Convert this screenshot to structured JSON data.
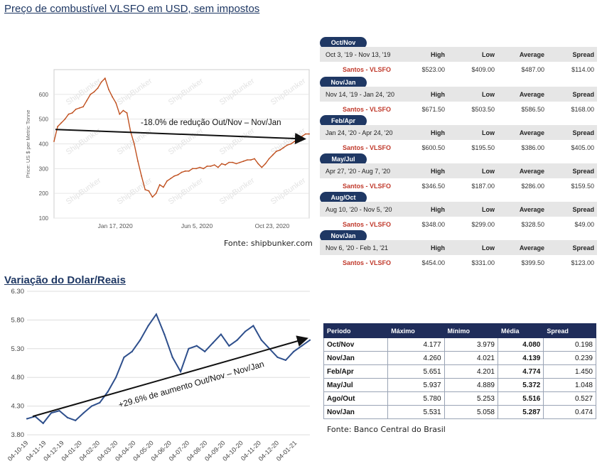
{
  "top_title": "Preço de combustível VLSFO em USD, sem impostos",
  "bottom_title": "Variação do Dolar/Reais",
  "top_source": "Fonte: shipbunker.com",
  "bottom_source": "Fonte: Banco Central do Brasil",
  "colors": {
    "vlsfo_line": "#c0501f",
    "brl_line": "#2e4f8c",
    "header_navy": "#1f3864"
  },
  "chart_data": [
    {
      "type": "line",
      "ylabel": "Price: US $ per Metric Tonne",
      "ylim": [
        100,
        700
      ],
      "yticks": [
        100,
        200,
        300,
        400,
        500,
        600
      ],
      "xtick_labels": [
        "Jan 17, 2020",
        "Jun 5, 2020",
        "Oct 23, 2020"
      ],
      "watermark": "ShipBunker",
      "grid": true,
      "annotation": "-18.0% de redução Out/Nov – Nov/Jan",
      "series": [
        {
          "x": [
            "Oct 03 2019",
            "Oct 10 2019",
            "Oct 17 2019",
            "Oct 24 2019",
            "Oct 31 2019",
            "Nov 07 2019",
            "Nov 14 2019",
            "Nov 21 2019",
            "Nov 28 2019",
            "Dec 05 2019",
            "Dec 12 2019",
            "Dec 19 2019",
            "Dec 26 2019",
            "Jan 02 2020",
            "Jan 09 2020",
            "Jan 16 2020",
            "Jan 23 2020",
            "Jan 30 2020",
            "Feb 06 2020",
            "Feb 13 2020",
            "Feb 20 2020",
            "Feb 27 2020",
            "Mar 05 2020",
            "Mar 12 2020",
            "Mar 19 2020",
            "Mar 26 2020",
            "Apr 02 2020",
            "Apr 09 2020",
            "Apr 16 2020",
            "Apr 23 2020",
            "Apr 30 2020",
            "May 07 2020",
            "May 14 2020",
            "May 21 2020",
            "May 28 2020",
            "Jun 04 2020",
            "Jun 11 2020",
            "Jun 18 2020",
            "Jun 25 2020",
            "Jul 02 2020",
            "Jul 09 2020",
            "Jul 16 2020",
            "Jul 23 2020",
            "Jul 30 2020",
            "Aug 06 2020",
            "Aug 13 2020",
            "Aug 20 2020",
            "Aug 27 2020",
            "Sep 03 2020",
            "Sep 10 2020",
            "Sep 17 2020",
            "Sep 24 2020",
            "Oct 01 2020",
            "Oct 08 2020",
            "Oct 15 2020",
            "Oct 22 2020",
            "Oct 29 2020",
            "Nov 05 2020",
            "Nov 12 2020",
            "Nov 19 2020",
            "Nov 26 2020",
            "Dec 03 2020",
            "Dec 10 2020",
            "Dec 17 2020",
            "Dec 24 2020",
            "Dec 31 2020",
            "Jan 07 2021",
            "Jan 14 2021",
            "Jan 21 2021",
            "Jan 28 2021",
            "Feb 01 2021"
          ],
          "values": [
            410,
            470,
            485,
            500,
            520,
            525,
            540,
            545,
            550,
            575,
            600,
            610,
            625,
            650,
            665,
            620,
            590,
            565,
            520,
            535,
            525,
            450,
            400,
            330,
            270,
            215,
            210,
            185,
            200,
            235,
            225,
            250,
            260,
            270,
            275,
            285,
            290,
            290,
            300,
            300,
            305,
            300,
            310,
            310,
            315,
            305,
            320,
            315,
            325,
            325,
            320,
            325,
            330,
            335,
            335,
            340,
            320,
            305,
            320,
            340,
            355,
            370,
            375,
            385,
            395,
            400,
            410,
            420,
            430,
            440,
            440
          ]
        }
      ]
    },
    {
      "type": "line",
      "ylim": [
        3.8,
        6.3
      ],
      "yticks": [
        "3.80",
        "4.30",
        "4.80",
        "5.30",
        "5.80",
        "6.30"
      ],
      "xtick_labels": [
        "04-10-19",
        "04-11-19",
        "04-12-19",
        "04-01-20",
        "04-02-20",
        "04-03-20",
        "04-04-20",
        "04-05-20",
        "04-06-20",
        "04-07-20",
        "04-08-20",
        "04-09-20",
        "04-10-20",
        "04-11-20",
        "04-12-20",
        "04-01-21"
      ],
      "grid": true,
      "annotation": "+29.6% de aumento Out/Nov – Nov/Jan",
      "series": [
        {
          "x": [
            "04-10-19",
            "18-10-19",
            "04-11-19",
            "18-11-19",
            "04-12-19",
            "18-12-19",
            "04-01-20",
            "18-01-20",
            "04-02-20",
            "18-02-20",
            "04-03-20",
            "11-03-20",
            "18-03-20",
            "04-04-20",
            "18-04-20",
            "04-05-20",
            "13-05-20",
            "18-05-20",
            "04-06-20",
            "10-06-20",
            "18-06-20",
            "04-07-20",
            "18-07-20",
            "04-08-20",
            "18-08-20",
            "04-09-20",
            "18-09-20",
            "04-10-20",
            "18-10-20",
            "04-11-20",
            "18-11-20",
            "04-12-20",
            "18-12-20",
            "04-01-21",
            "18-01-21",
            "01-02-21"
          ],
          "values": [
            4.08,
            4.12,
            4.0,
            4.18,
            4.22,
            4.1,
            4.05,
            4.18,
            4.3,
            4.36,
            4.55,
            4.8,
            5.15,
            5.25,
            5.45,
            5.7,
            5.9,
            5.55,
            5.15,
            4.9,
            5.3,
            5.35,
            5.25,
            5.4,
            5.55,
            5.35,
            5.45,
            5.6,
            5.7,
            5.45,
            5.3,
            5.15,
            5.1,
            5.25,
            5.35,
            5.45
          ]
        }
      ]
    }
  ],
  "vlsfo_tables": [
    {
      "tab": "Oct/Nov",
      "range": "Oct 3, '19 - Nov 13, '19",
      "label": "Santos - VLSFO",
      "high": "$523.00",
      "low": "$409.00",
      "avg": "$487.00",
      "spread": "$114.00"
    },
    {
      "tab": "Nov/Jan",
      "range": "Nov 14, '19 - Jan 24, '20",
      "label": "Santos - VLSFO",
      "high": "$671.50",
      "low": "$503.50",
      "avg": "$586.50",
      "spread": "$168.00"
    },
    {
      "tab": "Feb/Apr",
      "range": "Jan 24, '20 - Apr 24, '20",
      "label": "Santos - VLSFO",
      "high": "$600.50",
      "low": "$195.50",
      "avg": "$386.00",
      "spread": "$405.00"
    },
    {
      "tab": "May/Jul",
      "range": "Apr 27, '20 - Aug 7, '20",
      "label": "Santos - VLSFO",
      "high": "$346.50",
      "low": "$187.00",
      "avg": "$286.00",
      "spread": "$159.50"
    },
    {
      "tab": "Aug/Oct",
      "range": "Aug 10, '20 - Nov 5, '20",
      "label": "Santos - VLSFO",
      "high": "$348.00",
      "low": "$299.00",
      "avg": "$328.50",
      "spread": "$49.00"
    },
    {
      "tab": "Nov/Jan",
      "range": "Nov 6, '20 - Feb 1, '21",
      "label": "Santos - VLSFO",
      "high": "$454.00",
      "low": "$331.00",
      "avg": "$399.50",
      "spread": "$123.00"
    }
  ],
  "vlsfo_headers": {
    "high": "High",
    "low": "Low",
    "avg": "Average",
    "spread": "Spread"
  },
  "bcb_table": {
    "headers": [
      "Periodo",
      "Máximo",
      "Mínimo",
      "Média",
      "Spread"
    ],
    "rows": [
      [
        "Oct/Nov",
        "4.177",
        "3.979",
        "4.080",
        "0.198"
      ],
      [
        "Nov/Jan",
        "4.260",
        "4.021",
        "4.139",
        "0.239"
      ],
      [
        "Feb/Apr",
        "5.651",
        "4.201",
        "4.774",
        "1.450"
      ],
      [
        "May/Jul",
        "5.937",
        "4.889",
        "5.372",
        "1.048"
      ],
      [
        "Ago/Out",
        "5.780",
        "5.253",
        "5.516",
        "0.527"
      ],
      [
        "Nov/Jan",
        "5.531",
        "5.058",
        "5.287",
        "0.474"
      ]
    ]
  }
}
